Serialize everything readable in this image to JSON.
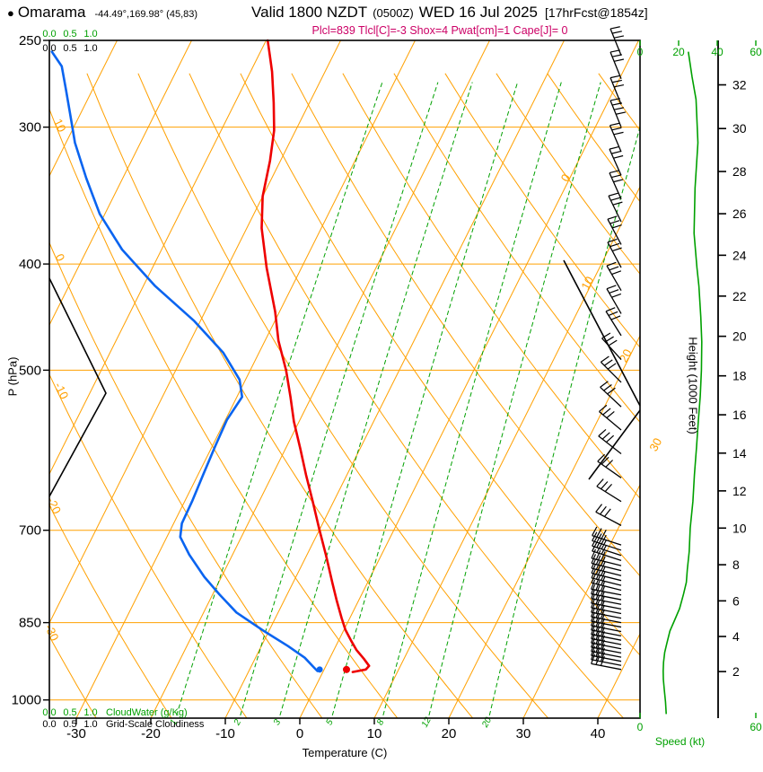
{
  "header": {
    "bullet": "●",
    "station": "Omarama",
    "coords": "-44.49°,169.98° (45,83)",
    "valid": "Valid 1800 NZDT",
    "z": "(0500Z)",
    "date": "WED 16 Jul 2025",
    "fcst": "[17hrFcst@1854z]",
    "metrics": "Plcl=839 Tlcl[C]=-3 Shox=4 Pwat[cm]=1 Cape[J]= 0"
  },
  "axes": {
    "pressure_label": "P (hPa)",
    "pressure_ticks": [
      250,
      300,
      400,
      500,
      700,
      850,
      1000
    ],
    "temp_label": "Temperature (C)",
    "temp_ticks": [
      -30,
      -20,
      -10,
      0,
      10,
      20,
      30,
      40
    ],
    "height_label": "Height (1000 Feet)",
    "height_ticks": [
      2,
      4,
      6,
      8,
      10,
      12,
      14,
      16,
      18,
      20,
      22,
      24,
      26,
      28,
      30,
      32
    ],
    "speed_label": "Speed (kt)",
    "speed_tick_values": [
      0,
      20,
      40,
      60
    ],
    "speed_bottom_values": [
      0,
      60
    ],
    "cloud_scale": [
      "0.0",
      "0.5",
      "1.0"
    ],
    "cloudwater_label": "CloudWater (g/Kg)",
    "cloudiness_label": "Grid-Scale Cloudiness"
  },
  "colors": {
    "orange": "#ffa000",
    "green": "#00a000",
    "red": "#ee0000",
    "blue": "#0a64f0",
    "magenta": "#cc0066",
    "black": "#000000"
  },
  "chart_data": {
    "type": "skewt_log_p_sounding",
    "pressure_range_hpa": [
      250,
      1040
    ],
    "isotherm_step_c": 10,
    "dry_adiabat_step_c": 10,
    "temperature_c": [
      [
        250,
        -49.8
      ],
      [
        258,
        -48.5
      ],
      [
        267,
        -47.1
      ],
      [
        285,
        -44.8
      ],
      [
        302,
        -42.9
      ],
      [
        322,
        -41.4
      ],
      [
        347,
        -40.0
      ],
      [
        371,
        -38.0
      ],
      [
        403,
        -34.7
      ],
      [
        442,
        -30.6
      ],
      [
        470,
        -28.2
      ],
      [
        500,
        -25.2
      ],
      [
        529,
        -22.8
      ],
      [
        557,
        -20.7
      ],
      [
        590,
        -18.0
      ],
      [
        623,
        -15.5
      ],
      [
        659,
        -12.8
      ],
      [
        698,
        -10.1
      ],
      [
        738,
        -7.4
      ],
      [
        782,
        -4.7
      ],
      [
        812,
        -2.9
      ],
      [
        842,
        -1.1
      ],
      [
        863,
        0.2
      ],
      [
        883,
        1.7
      ],
      [
        900,
        3.0
      ],
      [
        917,
        4.6
      ],
      [
        931,
        5.8
      ],
      [
        938,
        5.6
      ],
      [
        943,
        4.0
      ]
    ],
    "dewpoint_c": [
      [
        256,
        -78.0
      ],
      [
        264,
        -75.7
      ],
      [
        277,
        -73.6
      ],
      [
        293,
        -71.2
      ],
      [
        310,
        -68.8
      ],
      [
        334,
        -64.9
      ],
      [
        360,
        -60.7
      ],
      [
        388,
        -55.3
      ],
      [
        419,
        -48.4
      ],
      [
        451,
        -40.8
      ],
      [
        482,
        -34.8
      ],
      [
        510,
        -30.8
      ],
      [
        529,
        -29.3
      ],
      [
        555,
        -29.8
      ],
      [
        587,
        -29.6
      ],
      [
        623,
        -29.3
      ],
      [
        659,
        -29.0
      ],
      [
        690,
        -28.9
      ],
      [
        710,
        -28.2
      ],
      [
        737,
        -25.8
      ],
      [
        772,
        -22.3
      ],
      [
        801,
        -19.1
      ],
      [
        832,
        -15.6
      ],
      [
        863,
        -11.0
      ],
      [
        893,
        -6.4
      ],
      [
        915,
        -3.4
      ],
      [
        933,
        -1.6
      ],
      [
        941,
        -0.8
      ]
    ],
    "surface_markers": {
      "pressure_hpa": 938,
      "temp_c": 3.0,
      "dewpoint_c": -0.6
    },
    "wind_speed_kt": [
      [
        256,
        25
      ],
      [
        270,
        27
      ],
      [
        283,
        29
      ],
      [
        310,
        30
      ],
      [
        341,
        28.5
      ],
      [
        375,
        28
      ],
      [
        403,
        29.5
      ],
      [
        419,
        30.5
      ],
      [
        447,
        31.5
      ],
      [
        471,
        32
      ],
      [
        500,
        31.8
      ],
      [
        528,
        31.2
      ],
      [
        557,
        30.2
      ],
      [
        587,
        29.3
      ],
      [
        623,
        28.2
      ],
      [
        659,
        27.4
      ],
      [
        697,
        26
      ],
      [
        732,
        25.5
      ],
      [
        760,
        24.5
      ],
      [
        781,
        24
      ],
      [
        801,
        22.5
      ],
      [
        825,
        20.5
      ],
      [
        845,
        18
      ],
      [
        865,
        15.5
      ],
      [
        889,
        13.8
      ],
      [
        905,
        12.8
      ],
      [
        924,
        12.2
      ],
      [
        941,
        12
      ],
      [
        958,
        12.1
      ],
      [
        980,
        12.6
      ],
      [
        1004,
        13.2
      ],
      [
        1030,
        13.6
      ]
    ],
    "wind_barbs": [
      [
        258,
        112,
        3
      ],
      [
        271,
        112,
        3
      ],
      [
        286,
        112,
        3
      ],
      [
        300,
        112,
        4
      ],
      [
        316,
        113,
        3
      ],
      [
        332,
        114,
        3
      ],
      [
        349,
        114,
        3
      ],
      [
        366,
        116,
        3
      ],
      [
        384,
        118,
        3
      ],
      [
        403,
        118,
        3
      ],
      [
        423,
        120,
        3
      ],
      [
        444,
        120,
        3
      ],
      [
        465,
        122,
        3
      ],
      [
        489,
        132,
        3
      ],
      [
        513,
        135,
        3
      ],
      [
        540,
        137,
        3
      ],
      [
        567,
        140,
        3
      ],
      [
        596,
        142,
        3
      ],
      [
        627,
        145,
        3
      ],
      [
        659,
        148,
        3
      ],
      [
        693,
        152,
        3
      ],
      [
        722,
        162,
        3
      ],
      [
        730,
        162,
        3
      ],
      [
        738,
        162,
        3
      ],
      [
        746,
        162,
        3
      ],
      [
        754,
        166,
        3
      ],
      [
        762,
        166,
        3
      ],
      [
        770,
        166,
        3
      ],
      [
        778,
        166,
        3
      ],
      [
        786,
        166,
        3
      ],
      [
        794,
        166,
        3
      ],
      [
        802,
        169,
        3
      ],
      [
        810,
        169,
        3
      ],
      [
        818,
        169,
        3
      ],
      [
        826,
        169,
        3
      ],
      [
        834,
        169,
        3
      ],
      [
        842,
        169,
        3
      ],
      [
        850,
        169,
        3
      ],
      [
        858,
        169,
        3
      ],
      [
        866,
        169,
        3
      ],
      [
        874,
        169,
        3
      ],
      [
        882,
        169,
        3
      ],
      [
        890,
        169,
        3
      ],
      [
        898,
        169,
        3
      ],
      [
        906,
        169,
        3
      ],
      [
        914,
        169,
        3
      ],
      [
        922,
        169,
        3
      ],
      [
        930,
        169,
        3
      ],
      [
        938,
        169,
        3
      ]
    ],
    "isotherm_labels": [
      {
        "t": 0,
        "p": 335
      },
      {
        "t": 10,
        "p": 418
      },
      {
        "t": 20,
        "p": 487
      },
      {
        "t": 30,
        "p": 587
      }
    ],
    "dry_adiabat_labels": [
      {
        "th": 10,
        "p": 300
      },
      {
        "th": 0,
        "p": 396
      },
      {
        "th": -10,
        "p": 524
      },
      {
        "th": -20,
        "p": 667
      },
      {
        "th": -30,
        "p": 871
      }
    ],
    "mixing_ratio_g_kg": [
      1,
      2,
      3,
      5,
      8,
      12,
      20
    ],
    "extra_lines": [
      {
        "name": "cloud-profile-left",
        "points": [
          [
            55,
            310
          ],
          [
            118,
            438
          ],
          [
            55,
            553
          ]
        ]
      },
      {
        "name": "black-diagonal-upper-right",
        "points": [
          [
            628,
            290
          ],
          [
            713,
            452
          ]
        ]
      },
      {
        "name": "black-diagonal-lower-right",
        "points": [
          [
            713,
            457
          ],
          [
            656,
            534
          ]
        ]
      }
    ]
  }
}
